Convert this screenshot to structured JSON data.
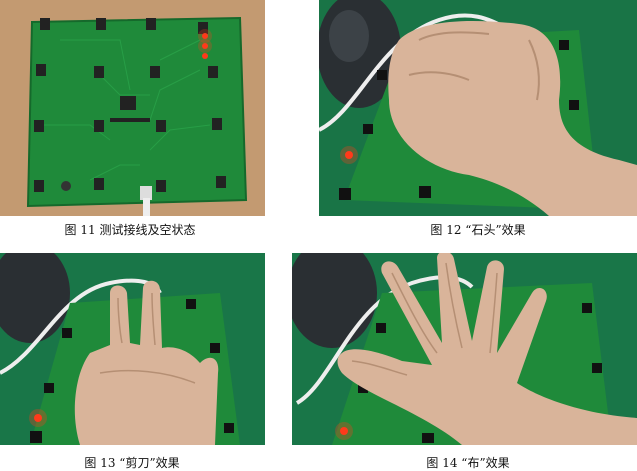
{
  "figures": [
    {
      "id": "fig11",
      "caption": "图 11  测试接线及空状态",
      "icon": "pcb-board-empty-photo"
    },
    {
      "id": "fig12",
      "caption": "图 12  “石头”效果",
      "icon": "hand-fist-photo"
    },
    {
      "id": "fig13",
      "caption": "图 13  “剪刀”效果",
      "icon": "hand-scissors-photo"
    },
    {
      "id": "fig14",
      "caption": "图 14  “布”效果",
      "icon": "hand-open-photo"
    }
  ],
  "colors": {
    "pcb_green": "#1f8a3a",
    "pcb_dark": "#176b2c",
    "led_red": "#ff3a1a",
    "skin": "#d9b49a",
    "table_wood": "#c9a27a",
    "mat_green": "#1d7f4e"
  }
}
